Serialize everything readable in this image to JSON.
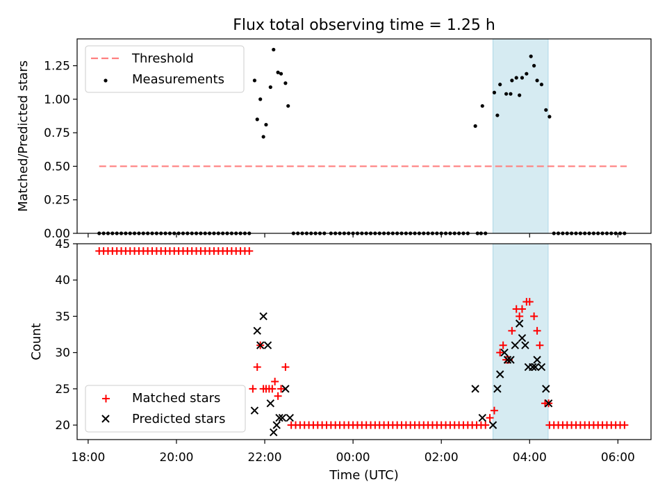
{
  "title": "Flux total observing time = 1.25 h",
  "chart_data": [
    {
      "type": "scatter",
      "panel": "top",
      "title": "Flux total observing time = 1.25 h",
      "xlabel": "",
      "ylabel": "Matched/Predicted stars",
      "xlim": [
        17.75,
        30.75
      ],
      "ylim": [
        0,
        1.45
      ],
      "yticks": [
        "0.00",
        "0.25",
        "0.50",
        "0.75",
        "1.00",
        "1.25"
      ],
      "ytick_values": [
        0,
        0.25,
        0.5,
        0.75,
        1.0,
        1.25
      ],
      "shaded_span": [
        27.17,
        28.42
      ],
      "threshold": {
        "name": "Threshold",
        "value": 0.5,
        "x": [
          18.25,
          30.2
        ],
        "color": "#ff7f7f"
      },
      "legend": {
        "placement": "upper-left",
        "entries": [
          "Threshold",
          "Measurements"
        ]
      },
      "series": [
        {
          "name": "Measurements",
          "color": "#000000",
          "points": [
            [
              21.77,
              1.14
            ],
            [
              21.83,
              0.85
            ],
            [
              21.9,
              1.0
            ],
            [
              21.97,
              0.72
            ],
            [
              22.03,
              0.81
            ],
            [
              22.13,
              1.09
            ],
            [
              22.2,
              1.37
            ],
            [
              22.3,
              1.2
            ],
            [
              22.37,
              1.19
            ],
            [
              22.47,
              1.12
            ],
            [
              22.53,
              0.95
            ],
            [
              26.77,
              0.8
            ],
            [
              26.93,
              0.95
            ],
            [
              27.2,
              1.05
            ],
            [
              27.27,
              0.88
            ],
            [
              27.33,
              1.11
            ],
            [
              27.47,
              1.04
            ],
            [
              27.57,
              1.04
            ],
            [
              27.6,
              1.14
            ],
            [
              27.7,
              1.16
            ],
            [
              27.77,
              1.03
            ],
            [
              27.83,
              1.16
            ],
            [
              27.93,
              1.19
            ],
            [
              28.03,
              1.32
            ],
            [
              28.1,
              1.25
            ],
            [
              28.17,
              1.14
            ],
            [
              28.27,
              1.11
            ],
            [
              28.37,
              0.92
            ],
            [
              28.45,
              0.87
            ]
          ],
          "zero_ranges": [
            [
              18.25,
              21.65
            ],
            [
              22.65,
              23.4
            ],
            [
              23.5,
              26.65
            ],
            [
              26.82,
              26.82
            ],
            [
              26.9,
              26.9
            ],
            [
              27.0,
              27.0
            ],
            [
              28.55,
              30.2
            ]
          ]
        }
      ]
    },
    {
      "type": "scatter",
      "panel": "bottom",
      "xlabel": "Time (UTC)",
      "ylabel": "Count",
      "xlim": [
        17.75,
        30.75
      ],
      "ylim": [
        18,
        45
      ],
      "xticks": [
        "18:00",
        "20:00",
        "22:00",
        "00:00",
        "02:00",
        "04:00",
        "06:00"
      ],
      "xtick_values": [
        18,
        20,
        22,
        24,
        26,
        28,
        30
      ],
      "yticks": [
        "20",
        "25",
        "30",
        "35",
        "40",
        "45"
      ],
      "ytick_values": [
        20,
        25,
        30,
        35,
        40,
        45
      ],
      "shaded_span": [
        27.17,
        28.42
      ],
      "legend": {
        "placement": "lower-left",
        "entries": [
          "Matched stars",
          "Predicted stars"
        ]
      },
      "series": [
        {
          "name": "Matched stars",
          "marker": "plus",
          "color": "#ff0000",
          "constant_ranges": [
            {
              "y": 44,
              "from": 18.25,
              "to": 21.65
            },
            {
              "y": 20,
              "from": 22.6,
              "to": 23.4
            },
            {
              "y": 20,
              "from": 23.5,
              "to": 27.05
            },
            {
              "y": 20,
              "from": 28.45,
              "to": 30.2
            }
          ],
          "points": [
            [
              21.73,
              25
            ],
            [
              21.83,
              28
            ],
            [
              21.9,
              31
            ],
            [
              21.97,
              25
            ],
            [
              22.03,
              25
            ],
            [
              22.1,
              25
            ],
            [
              22.17,
              25
            ],
            [
              22.23,
              26
            ],
            [
              22.3,
              24
            ],
            [
              22.37,
              25
            ],
            [
              22.47,
              28
            ],
            [
              27.1,
              21
            ],
            [
              27.2,
              22
            ],
            [
              27.33,
              30
            ],
            [
              27.4,
              31
            ],
            [
              27.47,
              29
            ],
            [
              27.53,
              29
            ],
            [
              27.6,
              33
            ],
            [
              27.7,
              36
            ],
            [
              27.77,
              35
            ],
            [
              27.83,
              36
            ],
            [
              27.93,
              37
            ],
            [
              28.0,
              37
            ],
            [
              28.1,
              35
            ],
            [
              28.17,
              33
            ],
            [
              28.23,
              31
            ],
            [
              28.35,
              23
            ],
            [
              28.43,
              23
            ]
          ]
        },
        {
          "name": "Predicted stars",
          "marker": "x",
          "color": "#000000",
          "points": [
            [
              21.77,
              22
            ],
            [
              21.83,
              33
            ],
            [
              21.9,
              31
            ],
            [
              21.97,
              35
            ],
            [
              22.07,
              31
            ],
            [
              22.13,
              23
            ],
            [
              22.2,
              19
            ],
            [
              22.27,
              20
            ],
            [
              22.33,
              21
            ],
            [
              22.4,
              21
            ],
            [
              22.47,
              25
            ],
            [
              22.57,
              21
            ],
            [
              26.77,
              25
            ],
            [
              26.93,
              21
            ],
            [
              27.17,
              20
            ],
            [
              27.27,
              25
            ],
            [
              27.33,
              27
            ],
            [
              27.43,
              30
            ],
            [
              27.5,
              29
            ],
            [
              27.57,
              29
            ],
            [
              27.67,
              31
            ],
            [
              27.77,
              34
            ],
            [
              27.83,
              32
            ],
            [
              27.9,
              31
            ],
            [
              27.97,
              28
            ],
            [
              28.07,
              28
            ],
            [
              28.13,
              28
            ],
            [
              28.17,
              29
            ],
            [
              28.27,
              28
            ],
            [
              28.37,
              25
            ],
            [
              28.43,
              23
            ]
          ]
        }
      ]
    }
  ]
}
